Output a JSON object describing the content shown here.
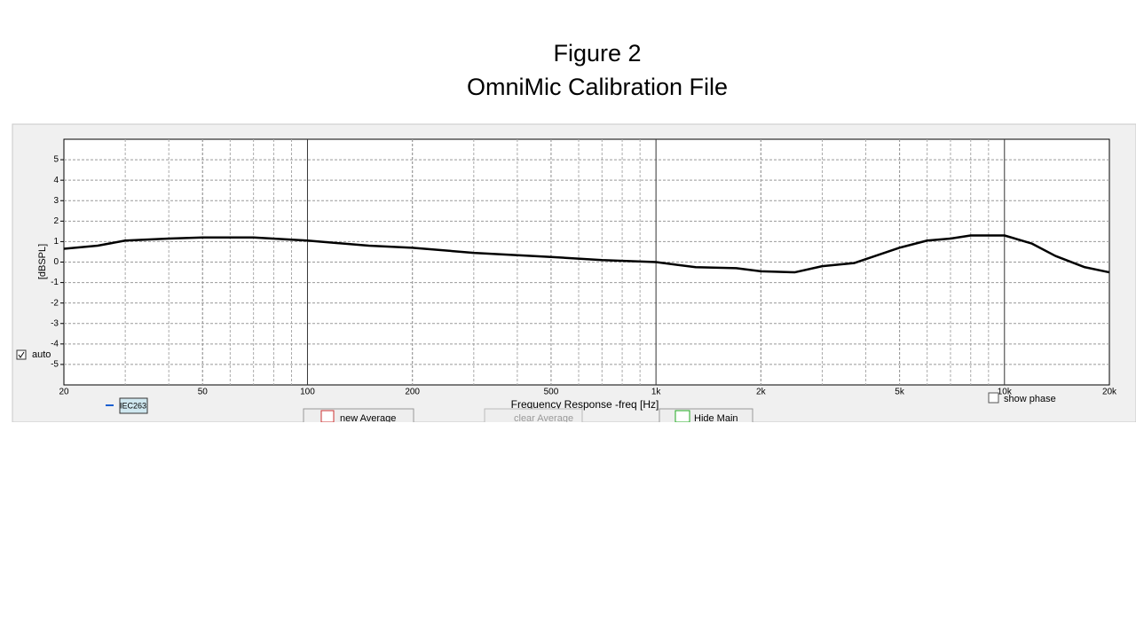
{
  "chart_data": {
    "type": "line",
    "title": "Figure 2",
    "subtitle": "OmniMic Calibration File",
    "ylabel": "[dBSPL]",
    "xlabel": "Frequency Response -freq [Hz]",
    "x": [
      20,
      25,
      30,
      40,
      50,
      70,
      100,
      150,
      200,
      300,
      500,
      700,
      1000,
      1300,
      1700,
      2000,
      2500,
      3000,
      3700,
      5000,
      6000,
      7000,
      8000,
      10000,
      12000,
      14000,
      17000,
      20000
    ],
    "series": [
      {
        "name": "IEC263",
        "color": "#000000",
        "values": [
          0.65,
          0.8,
          1.05,
          1.15,
          1.2,
          1.2,
          1.05,
          0.8,
          0.7,
          0.45,
          0.25,
          0.1,
          0.0,
          -0.25,
          -0.3,
          -0.45,
          -0.5,
          -0.2,
          -0.05,
          0.7,
          1.05,
          1.15,
          1.3,
          1.3,
          0.9,
          0.3,
          -0.25,
          -0.5
        ]
      }
    ],
    "xlim": [
      20,
      20000
    ],
    "xlog": true,
    "xticks": [
      20,
      50,
      100,
      200,
      500,
      {
        "value": 1000,
        "label": "1k"
      },
      {
        "value": 2000,
        "label": "2k"
      },
      {
        "value": 5000,
        "label": "5k"
      },
      {
        "value": 10000,
        "label": "10k"
      },
      {
        "value": 20000,
        "label": "20k"
      }
    ],
    "ylim": [
      -6,
      6
    ],
    "yticks": [
      -5,
      -4,
      -3,
      -2,
      -1,
      0,
      1,
      2,
      3,
      4,
      5
    ],
    "grid": true
  },
  "ui": {
    "auto": "auto",
    "show_phase": "show phase",
    "new_average": "new Average",
    "clear_average": "clear Average",
    "hide_main": "Hide Main"
  }
}
